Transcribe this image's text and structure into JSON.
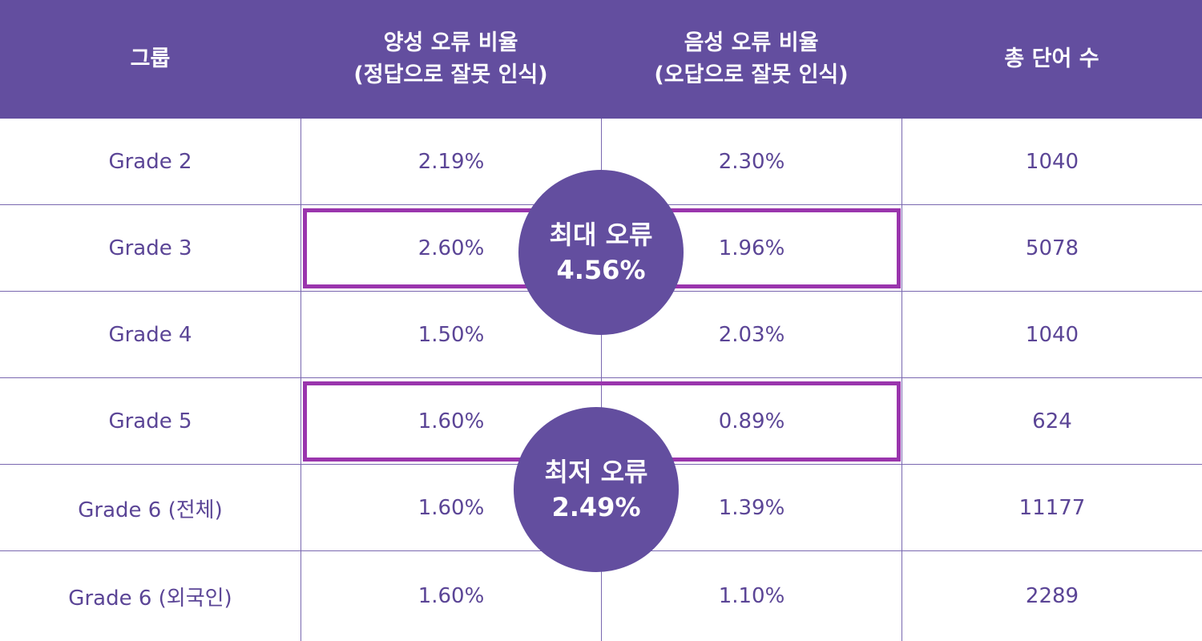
{
  "table": {
    "headers": [
      {
        "lines": [
          "그룹"
        ]
      },
      {
        "lines": [
          "양성 오류 비율",
          "(정답으로 잘못 인식)"
        ]
      },
      {
        "lines": [
          "음성 오류 비율",
          "(오답으로 잘못 인식)"
        ]
      },
      {
        "lines": [
          "총 단어 수"
        ]
      }
    ],
    "rows": [
      {
        "group": "Grade 2",
        "false_positive": "2.19%",
        "false_negative": "2.30%",
        "total_words": "1040"
      },
      {
        "group": "Grade 3",
        "false_positive": "2.60%",
        "false_negative": "1.96%",
        "total_words": "5078"
      },
      {
        "group": "Grade 4",
        "false_positive": "1.50%",
        "false_negative": "2.03%",
        "total_words": "1040"
      },
      {
        "group": "Grade 5",
        "false_positive": "1.60%",
        "false_negative": "0.89%",
        "total_words": "624"
      },
      {
        "group": "Grade 6 (전체)",
        "false_positive": "1.60%",
        "false_negative": "1.39%",
        "total_words": "11177"
      },
      {
        "group": "Grade 6 (외국인)",
        "false_positive": "1.60%",
        "false_negative": "1.10%",
        "total_words": "2289"
      }
    ]
  },
  "callouts": {
    "max_error": {
      "label": "최대 오류",
      "value": "4.56%"
    },
    "min_error": {
      "label": "최저 오류",
      "value": "2.49%"
    }
  },
  "colors": {
    "header_bg": "#634e9f",
    "text": "#5b4596",
    "highlight_border": "#9a35ad",
    "grid": "#7a68b0"
  }
}
